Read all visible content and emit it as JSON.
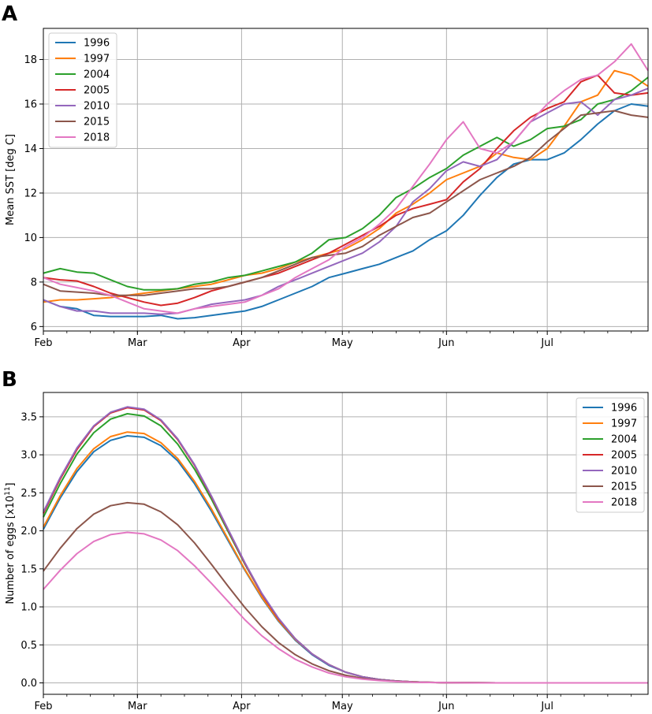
{
  "chart_data": [
    {
      "panel": "A",
      "type": "line",
      "ylabel": "Mean SST [deg C]",
      "xlabel": "",
      "ylim": [
        5.8,
        19.4
      ],
      "yticks": [
        6,
        8,
        10,
        12,
        14,
        16,
        18
      ],
      "xlim": [
        0,
        180
      ],
      "xticks": [
        {
          "label": "Feb",
          "day": 0
        },
        {
          "label": "Mar",
          "day": 28
        },
        {
          "label": "Apr",
          "day": 59
        },
        {
          "label": "May",
          "day": 89
        },
        {
          "label": "Jun",
          "day": 120
        },
        {
          "label": "Jul",
          "day": 150
        }
      ],
      "legend_position": "top-left",
      "x": [
        0,
        5,
        10,
        15,
        20,
        25,
        30,
        35,
        40,
        45,
        50,
        55,
        60,
        65,
        70,
        75,
        80,
        85,
        90,
        95,
        100,
        105,
        110,
        115,
        120,
        125,
        130,
        135,
        140,
        145,
        150,
        155,
        160,
        165,
        170,
        175,
        180
      ],
      "series": [
        {
          "name": "1996",
          "color": "#1f77b4",
          "values": [
            7.2,
            6.9,
            6.8,
            6.5,
            6.45,
            6.45,
            6.45,
            6.5,
            6.35,
            6.4,
            6.5,
            6.6,
            6.7,
            6.9,
            7.2,
            7.5,
            7.8,
            8.2,
            8.4,
            8.6,
            8.8,
            9.1,
            9.4,
            9.9,
            10.3,
            11.0,
            11.9,
            12.7,
            13.3,
            13.5,
            13.5,
            13.8,
            14.4,
            15.1,
            15.7,
            16.0,
            15.9
          ]
        },
        {
          "name": "1997",
          "color": "#ff7f0e",
          "values": [
            7.1,
            7.2,
            7.2,
            7.25,
            7.3,
            7.4,
            7.5,
            7.6,
            7.7,
            7.8,
            7.9,
            8.1,
            8.3,
            8.4,
            8.6,
            8.9,
            9.1,
            9.3,
            9.5,
            9.9,
            10.4,
            11.1,
            11.5,
            12.0,
            12.6,
            12.9,
            13.2,
            13.8,
            13.6,
            13.5,
            14.0,
            15.0,
            16.1,
            16.4,
            17.5,
            17.3,
            16.8
          ]
        },
        {
          "name": "2004",
          "color": "#2ca02c",
          "values": [
            8.4,
            8.6,
            8.45,
            8.4,
            8.1,
            7.8,
            7.65,
            7.65,
            7.7,
            7.9,
            8.0,
            8.2,
            8.3,
            8.5,
            8.7,
            8.9,
            9.3,
            9.9,
            10.0,
            10.4,
            11.0,
            11.8,
            12.2,
            12.7,
            13.1,
            13.7,
            14.1,
            14.5,
            14.1,
            14.4,
            14.9,
            15.0,
            15.3,
            16.0,
            16.2,
            16.6,
            17.2
          ]
        },
        {
          "name": "2005",
          "color": "#d62728",
          "values": [
            8.2,
            8.1,
            8.05,
            7.8,
            7.5,
            7.3,
            7.1,
            6.95,
            7.05,
            7.3,
            7.6,
            7.8,
            8.0,
            8.2,
            8.4,
            8.7,
            9.0,
            9.3,
            9.7,
            10.1,
            10.5,
            11.0,
            11.3,
            11.5,
            11.7,
            12.5,
            13.1,
            14.0,
            14.8,
            15.4,
            15.8,
            16.1,
            17.0,
            17.3,
            16.5,
            16.4,
            16.5
          ]
        },
        {
          "name": "2010",
          "color": "#9467bd",
          "values": [
            7.2,
            6.9,
            6.7,
            6.7,
            6.6,
            6.6,
            6.6,
            6.55,
            6.6,
            6.8,
            7.0,
            7.1,
            7.2,
            7.4,
            7.8,
            8.1,
            8.4,
            8.7,
            9.0,
            9.3,
            9.8,
            10.5,
            11.6,
            12.2,
            13.0,
            13.4,
            13.2,
            13.5,
            14.3,
            15.2,
            15.6,
            16.0,
            16.1,
            15.5,
            16.2,
            16.4,
            16.7
          ]
        },
        {
          "name": "2015",
          "color": "#8c564b",
          "values": [
            7.9,
            7.6,
            7.55,
            7.5,
            7.4,
            7.4,
            7.4,
            7.5,
            7.6,
            7.7,
            7.7,
            7.8,
            8.0,
            8.2,
            8.5,
            8.8,
            9.1,
            9.2,
            9.3,
            9.6,
            10.1,
            10.5,
            10.9,
            11.1,
            11.6,
            12.1,
            12.6,
            12.9,
            13.2,
            13.6,
            14.3,
            14.9,
            15.5,
            15.6,
            15.7,
            15.5,
            15.4
          ]
        },
        {
          "name": "2018",
          "color": "#e377c2",
          "values": [
            8.2,
            7.9,
            7.75,
            7.6,
            7.4,
            7.1,
            6.8,
            6.7,
            6.6,
            6.8,
            6.9,
            7.0,
            7.1,
            7.4,
            7.7,
            8.2,
            8.6,
            9.0,
            9.6,
            10.0,
            10.6,
            11.3,
            12.3,
            13.3,
            14.4,
            15.2,
            14.0,
            13.8,
            14.3,
            15.2,
            16.0,
            16.6,
            17.1,
            17.3,
            17.9,
            18.7,
            17.5
          ]
        }
      ]
    },
    {
      "panel": "B",
      "type": "line",
      "ylabel": "Number of eggs [x10",
      "ylabel_sup": "11",
      "ylabel_end": "]",
      "xlabel": "",
      "ylim": [
        -0.15,
        3.82
      ],
      "yticks": [
        0.0,
        0.5,
        1.0,
        1.5,
        2.0,
        2.5,
        3.0,
        3.5
      ],
      "ytick_labels": [
        "0.0",
        "0.5",
        "1.0",
        "1.5",
        "2.0",
        "2.5",
        "3.0",
        "3.5"
      ],
      "xlim": [
        0,
        180
      ],
      "xticks": [
        {
          "label": "Feb",
          "day": 0
        },
        {
          "label": "Mar",
          "day": 28
        },
        {
          "label": "Apr",
          "day": 59
        },
        {
          "label": "May",
          "day": 89
        },
        {
          "label": "Jun",
          "day": 120
        },
        {
          "label": "Jul",
          "day": 150
        }
      ],
      "legend_position": "top-right",
      "x": [
        0,
        5,
        10,
        15,
        20,
        25,
        30,
        35,
        40,
        45,
        50,
        55,
        60,
        65,
        70,
        75,
        80,
        85,
        90,
        95,
        100,
        105,
        110,
        115,
        120,
        125,
        130,
        135,
        140,
        145,
        150,
        155,
        160,
        165,
        170,
        175,
        180
      ],
      "series": [
        {
          "name": "1996",
          "color": "#1f77b4",
          "values": [
            2.02,
            2.43,
            2.78,
            3.04,
            3.19,
            3.25,
            3.23,
            3.12,
            2.92,
            2.62,
            2.26,
            1.87,
            1.48,
            1.12,
            0.81,
            0.56,
            0.37,
            0.23,
            0.14,
            0.08,
            0.045,
            0.025,
            0.013,
            0.007,
            0.003,
            0.002,
            0.001,
            0.0,
            0.0,
            0.0,
            0.0,
            0.0,
            0.0,
            0.0,
            0.0,
            0.0,
            0.0
          ]
        },
        {
          "name": "1997",
          "color": "#ff7f0e",
          "values": [
            2.05,
            2.46,
            2.82,
            3.08,
            3.24,
            3.3,
            3.28,
            3.16,
            2.95,
            2.65,
            2.29,
            1.89,
            1.49,
            1.13,
            0.82,
            0.57,
            0.38,
            0.24,
            0.14,
            0.08,
            0.045,
            0.025,
            0.013,
            0.007,
            0.003,
            0.002,
            0.001,
            0.0,
            0.0,
            0.0,
            0.0,
            0.0,
            0.0,
            0.0,
            0.0,
            0.0,
            0.0
          ]
        },
        {
          "name": "2004",
          "color": "#2ca02c",
          "values": [
            2.18,
            2.62,
            3.01,
            3.29,
            3.47,
            3.54,
            3.51,
            3.38,
            3.14,
            2.81,
            2.42,
            1.99,
            1.56,
            1.17,
            0.84,
            0.58,
            0.38,
            0.24,
            0.14,
            0.08,
            0.045,
            0.025,
            0.013,
            0.007,
            0.003,
            0.002,
            0.001,
            0.0,
            0.0,
            0.0,
            0.0,
            0.0,
            0.0,
            0.0,
            0.0,
            0.0,
            0.0
          ]
        },
        {
          "name": "2005",
          "color": "#d62728",
          "values": [
            2.23,
            2.68,
            3.07,
            3.37,
            3.55,
            3.62,
            3.59,
            3.45,
            3.2,
            2.86,
            2.45,
            2.01,
            1.57,
            1.17,
            0.84,
            0.58,
            0.38,
            0.24,
            0.14,
            0.08,
            0.045,
            0.025,
            0.013,
            0.007,
            0.003,
            0.002,
            0.001,
            0.0,
            0.0,
            0.0,
            0.0,
            0.0,
            0.0,
            0.0,
            0.0,
            0.0,
            0.0
          ]
        },
        {
          "name": "2010",
          "color": "#9467bd",
          "values": [
            2.25,
            2.7,
            3.09,
            3.38,
            3.56,
            3.63,
            3.6,
            3.46,
            3.21,
            2.87,
            2.46,
            2.02,
            1.58,
            1.18,
            0.85,
            0.58,
            0.38,
            0.24,
            0.14,
            0.08,
            0.045,
            0.025,
            0.013,
            0.007,
            0.003,
            0.002,
            0.001,
            0.0,
            0.0,
            0.0,
            0.0,
            0.0,
            0.0,
            0.0,
            0.0,
            0.0,
            0.0
          ]
        },
        {
          "name": "2015",
          "color": "#8c564b",
          "values": [
            1.47,
            1.77,
            2.03,
            2.22,
            2.33,
            2.37,
            2.35,
            2.25,
            2.08,
            1.84,
            1.56,
            1.27,
            0.99,
            0.74,
            0.53,
            0.37,
            0.25,
            0.16,
            0.1,
            0.06,
            0.035,
            0.02,
            0.011,
            0.006,
            0.003,
            0.002,
            0.001,
            0.0,
            0.0,
            0.0,
            0.0,
            0.0,
            0.0,
            0.0,
            0.0,
            0.0,
            0.0
          ]
        },
        {
          "name": "2018",
          "color": "#e377c2",
          "values": [
            1.23,
            1.48,
            1.7,
            1.86,
            1.95,
            1.98,
            1.96,
            1.88,
            1.74,
            1.54,
            1.31,
            1.07,
            0.83,
            0.62,
            0.45,
            0.31,
            0.21,
            0.13,
            0.08,
            0.05,
            0.03,
            0.017,
            0.009,
            0.005,
            0.002,
            0.001,
            0.0,
            0.0,
            0.0,
            0.0,
            0.0,
            0.0,
            0.0,
            0.0,
            0.0,
            0.0,
            0.0
          ]
        }
      ]
    }
  ],
  "labels": {
    "panel_a": "A",
    "panel_b": "B"
  }
}
